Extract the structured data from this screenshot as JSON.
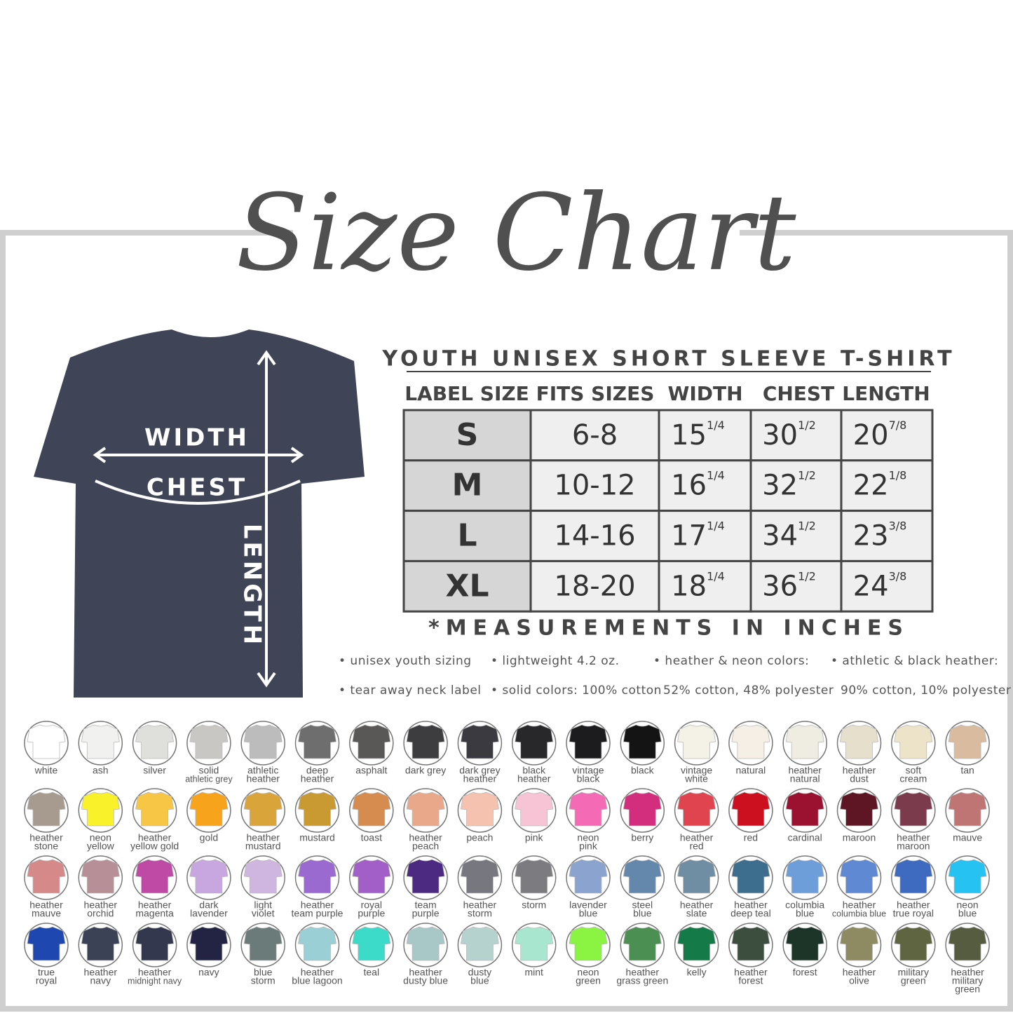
{
  "title": "Size Chart",
  "shirt": {
    "width": "WIDTH",
    "chest": "CHEST",
    "length": "LENGTH"
  },
  "table": {
    "title": "YOUTH UNISEX SHORT SLEEVE T-SHIRT",
    "headers": [
      "LABEL SIZE",
      "FITS SIZES",
      "WIDTH",
      "CHEST",
      "LENGTH"
    ],
    "rows": [
      [
        "S",
        "6-8",
        {
          "whole": "15",
          "frac": "1/4"
        },
        {
          "whole": "30",
          "frac": "1/2"
        },
        {
          "whole": "20",
          "frac": "7/8"
        }
      ],
      [
        "M",
        "10-12",
        {
          "whole": "16",
          "frac": "1/4"
        },
        {
          "whole": "32",
          "frac": "1/2"
        },
        {
          "whole": "22",
          "frac": "1/8"
        }
      ],
      [
        "L",
        "14-16",
        {
          "whole": "17",
          "frac": "1/4"
        },
        {
          "whole": "34",
          "frac": "1/2"
        },
        {
          "whole": "23",
          "frac": "3/8"
        }
      ],
      [
        "XL",
        "18-20",
        {
          "whole": "18",
          "frac": "1/4"
        },
        {
          "whole": "36",
          "frac": "1/2"
        },
        {
          "whole": "24",
          "frac": "3/8"
        }
      ]
    ]
  },
  "note": "*MEASUREMENTS IN INCHES",
  "features": [
    [
      "• unisex youth sizing",
      "• tear away neck label"
    ],
    [
      "• lightweight 4.2 oz.",
      "• solid colors: 100% cotton"
    ],
    [
      "• heather & neon colors:",
      "52% cotton, 48% polyester"
    ],
    [
      "• athletic & black heather:",
      "90% cotton, 10% polyester"
    ]
  ],
  "colors": [
    {
      "name": [
        "white"
      ],
      "color": "#ffffff"
    },
    {
      "name": [
        "ash"
      ],
      "color": "#f1f1ef"
    },
    {
      "name": [
        "silver"
      ],
      "color": "#dfe0dc"
    },
    {
      "name": [
        "solid",
        "athletic grey"
      ],
      "color": "#c9c7c4"
    },
    {
      "name": [
        "athletic",
        "heather"
      ],
      "color": "#bdbcbc"
    },
    {
      "name": [
        "deep",
        "heather"
      ],
      "color": "#6e6e6e"
    },
    {
      "name": [
        "asphalt"
      ],
      "color": "#5a5856"
    },
    {
      "name": [
        "dark grey"
      ],
      "color": "#3d3d3f"
    },
    {
      "name": [
        "dark grey",
        "heather"
      ],
      "color": "#3a3a40"
    },
    {
      "name": [
        "black",
        "heather"
      ],
      "color": "#28282a"
    },
    {
      "name": [
        "vintage",
        "black"
      ],
      "color": "#1c1c1e"
    },
    {
      "name": [
        "black"
      ],
      "color": "#141414"
    },
    {
      "name": [
        "vintage",
        "white"
      ],
      "color": "#f4f1e6"
    },
    {
      "name": [
        "natural"
      ],
      "color": "#f6efe6"
    },
    {
      "name": [
        "heather",
        "natural"
      ],
      "color": "#efece2"
    },
    {
      "name": [
        "heather",
        "dust"
      ],
      "color": "#e5dfcc"
    },
    {
      "name": [
        "soft",
        "cream"
      ],
      "color": "#ece3c9"
    },
    {
      "name": [
        "tan"
      ],
      "color": "#d9bba0"
    },
    {
      "name": [
        "heather",
        "stone"
      ],
      "color": "#a69b8e"
    },
    {
      "name": [
        "neon",
        "yellow"
      ],
      "color": "#f9f12a"
    },
    {
      "name": [
        "heather",
        "yellow gold"
      ],
      "color": "#f8c645"
    },
    {
      "name": [
        "gold"
      ],
      "color": "#f7a41c"
    },
    {
      "name": [
        "heather",
        "mustard"
      ],
      "color": "#d9a53a"
    },
    {
      "name": [
        "mustard"
      ],
      "color": "#c99a32"
    },
    {
      "name": [
        "toast"
      ],
      "color": "#d58c4e"
    },
    {
      "name": [
        "heather",
        "peach"
      ],
      "color": "#eaa88a"
    },
    {
      "name": [
        "peach"
      ],
      "color": "#f4c2ae"
    },
    {
      "name": [
        "pink"
      ],
      "color": "#f7c4d6"
    },
    {
      "name": [
        "neon",
        "pink"
      ],
      "color": "#f46ab4"
    },
    {
      "name": [
        "berry"
      ],
      "color": "#d22e7d"
    },
    {
      "name": [
        "heather",
        "red"
      ],
      "color": "#e0444f"
    },
    {
      "name": [
        "red"
      ],
      "color": "#cc1020"
    },
    {
      "name": [
        "cardinal"
      ],
      "color": "#9b1230"
    },
    {
      "name": [
        "maroon"
      ],
      "color": "#5e1624"
    },
    {
      "name": [
        "heather",
        "maroon"
      ],
      "color": "#7b3b4c"
    },
    {
      "name": [
        "mauve"
      ],
      "color": "#c07575"
    },
    {
      "name": [
        "heather",
        "mauve"
      ],
      "color": "#d68989"
    },
    {
      "name": [
        "heather",
        "orchid"
      ],
      "color": "#b78f97"
    },
    {
      "name": [
        "heather",
        "magenta"
      ],
      "color": "#bf4aa6"
    },
    {
      "name": [
        "dark",
        "lavender"
      ],
      "color": "#c8a6e0"
    },
    {
      "name": [
        "light",
        "violet"
      ],
      "color": "#cfb6e0"
    },
    {
      "name": [
        "heather",
        "team purple"
      ],
      "color": "#9b6ad0"
    },
    {
      "name": [
        "royal",
        "purple"
      ],
      "color": "#a25fc8"
    },
    {
      "name": [
        "team",
        "purple"
      ],
      "color": "#4d2a82"
    },
    {
      "name": [
        "heather",
        "storm"
      ],
      "color": "#77777f"
    },
    {
      "name": [
        "storm"
      ],
      "color": "#7c7c80"
    },
    {
      "name": [
        "lavender",
        "blue"
      ],
      "color": "#8aa3cf"
    },
    {
      "name": [
        "steel",
        "blue"
      ],
      "color": "#6388ac"
    },
    {
      "name": [
        "heather",
        "slate"
      ],
      "color": "#6f8da3"
    },
    {
      "name": [
        "heather",
        "deep teal"
      ],
      "color": "#3d6e8e"
    },
    {
      "name": [
        "columbia",
        "blue"
      ],
      "color": "#6d9ed9"
    },
    {
      "name": [
        "heather",
        "columbia blue"
      ],
      "color": "#5f89d2"
    },
    {
      "name": [
        "heather",
        "true royal"
      ],
      "color": "#3e6bc0"
    },
    {
      "name": [
        "neon",
        "blue"
      ],
      "color": "#26c3f2"
    },
    {
      "name": [
        "true",
        "royal"
      ],
      "color": "#1f47b0"
    },
    {
      "name": [
        "heather",
        "navy"
      ],
      "color": "#3c4256"
    },
    {
      "name": [
        "heather",
        "midnight navy"
      ],
      "color": "#34384f"
    },
    {
      "name": [
        "navy"
      ],
      "color": "#232444"
    },
    {
      "name": [
        "blue",
        "storm"
      ],
      "color": "#6a7b7a"
    },
    {
      "name": [
        "heather",
        "blue lagoon"
      ],
      "color": "#9bcfd6"
    },
    {
      "name": [
        "teal"
      ],
      "color": "#3cdac8"
    },
    {
      "name": [
        "heather",
        "dusty blue"
      ],
      "color": "#a7c8c7"
    },
    {
      "name": [
        "dusty",
        "blue"
      ],
      "color": "#b6d2ce"
    },
    {
      "name": [
        "mint"
      ],
      "color": "#a8e6cf"
    },
    {
      "name": [
        "neon",
        "green"
      ],
      "color": "#8bf442"
    },
    {
      "name": [
        "heather",
        "grass green"
      ],
      "color": "#4b8f52"
    },
    {
      "name": [
        "kelly"
      ],
      "color": "#137a48"
    },
    {
      "name": [
        "heather",
        "forest"
      ],
      "color": "#3c4f3f"
    },
    {
      "name": [
        "forest"
      ],
      "color": "#1d3428"
    },
    {
      "name": [
        "heather",
        "olive"
      ],
      "color": "#8e8a62"
    },
    {
      "name": [
        "military",
        "green"
      ],
      "color": "#5f6441"
    },
    {
      "name": [
        "heather",
        "military",
        "green"
      ],
      "color": "#565c3f"
    }
  ]
}
